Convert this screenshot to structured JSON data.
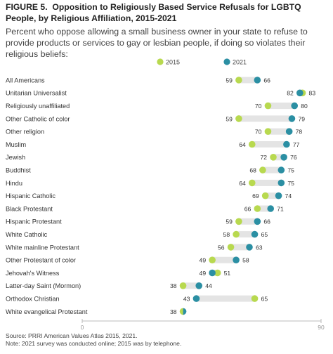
{
  "title": {
    "figure": "FIGURE 5.",
    "text": "Opposition to Religiously Based Service Refusals for LGBTQ People, by Religious Affiliation, 2015-2021"
  },
  "subtitle": "Percent who oppose allowing a small business owner in your state to refuse to provide products or services to gay or lesbian people, if doing so violates their religious beliefs:",
  "colors": {
    "y2015": "#b8d94f",
    "y2021": "#2b8fa3",
    "bar": "#e4e4e4",
    "axis": "#bbbbbb"
  },
  "chart_data": {
    "type": "dumbbell",
    "xlim": [
      0,
      90
    ],
    "x_ticks": [
      "0",
      "90"
    ],
    "legend": {
      "position": "top",
      "entries": [
        "2015",
        "2021"
      ]
    },
    "categories": [
      "All Americans",
      "Unitarian Universalist",
      "Religiously unaffiliated",
      "Other Catholic of color",
      "Other religion",
      "Muslim",
      "Jewish",
      "Buddhist",
      "Hindu",
      "Hispanic Catholic",
      "Black Protestant",
      "Hispanic Protestant",
      "White Catholic",
      "White mainline Protestant",
      "Other Protestant of color",
      "Jehovah's Witness",
      "Latter-day Saint (Mormon)",
      "Orthodox Christian",
      "White evangelical Protestant"
    ],
    "series": [
      {
        "name": "2015",
        "values": [
          59,
          83,
          70,
          59,
          70,
          64,
          72,
          68,
          64,
          69,
          66,
          59,
          58,
          56,
          49,
          51,
          38,
          65,
          38
        ]
      },
      {
        "name": "2021",
        "values": [
          66,
          82,
          80,
          79,
          78,
          77,
          76,
          75,
          75,
          74,
          71,
          66,
          65,
          63,
          58,
          49,
          44,
          43,
          38
        ]
      }
    ],
    "labels": [
      [
        "59",
        "66"
      ],
      [
        "82",
        "83"
      ],
      [
        "70",
        "80"
      ],
      [
        "59",
        "79"
      ],
      [
        "70",
        "78"
      ],
      [
        "64",
        "77"
      ],
      [
        "72",
        "76"
      ],
      [
        "68",
        "75"
      ],
      [
        "64",
        "75"
      ],
      [
        "69",
        "74"
      ],
      [
        "66",
        "71"
      ],
      [
        "59",
        "66"
      ],
      [
        "58",
        "65"
      ],
      [
        "56",
        "63"
      ],
      [
        "49",
        "58"
      ],
      [
        "49",
        "51"
      ],
      [
        "38",
        "44"
      ],
      [
        "43",
        "65"
      ],
      [
        "38",
        ""
      ]
    ]
  },
  "source": {
    "line1": "Source: PRRI American Values Atlas 2015, 2021.",
    "line2": "Note: 2021 survey was conducted online; 2015 was by telephone."
  }
}
